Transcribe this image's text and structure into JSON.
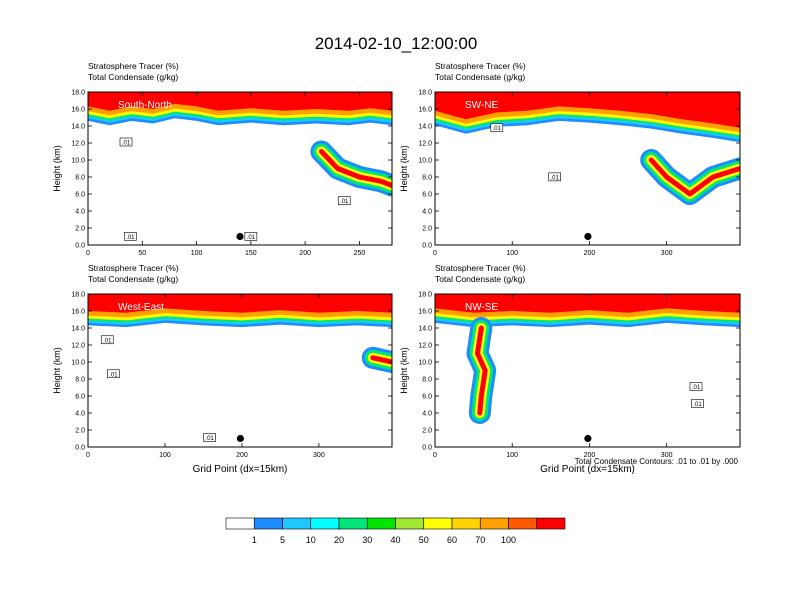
{
  "title": "2014-02-10_12:00:00",
  "colorbar": {
    "colors": [
      "#ffffff",
      "#1e8cff",
      "#1ec8ff",
      "#00ffff",
      "#00e678",
      "#00e600",
      "#a0e632",
      "#ffff00",
      "#ffd200",
      "#ffa000",
      "#ff5a00",
      "#ff0000"
    ],
    "labels": [
      "1",
      "5",
      "10",
      "20",
      "30",
      "40",
      "50",
      "60",
      "70",
      "100"
    ]
  },
  "footnote": "Total Condensate Contours: .01 to .01 by .000",
  "chart_data": [
    {
      "type": "heatmap",
      "label": "South-North",
      "title_line1": "Stratosphere Tracer   (%)",
      "title_line2": "Total Condensate   (g/kg)",
      "ylabel": "Height (km)",
      "xlabel": "",
      "xlim": [
        0,
        280
      ],
      "ylim": [
        0,
        18
      ],
      "xticks": [
        "0",
        "50",
        "100",
        "150",
        "200",
        "250"
      ],
      "xtick_values": [
        0,
        50,
        100,
        150,
        200,
        250
      ],
      "yticks": [
        "0.0",
        "2.0",
        "4.0",
        "6.0",
        "8.0",
        "10.0",
        "12.0",
        "14.0",
        "16.0",
        "18.0"
      ],
      "marker": {
        "x": 140,
        "y": 1.0
      },
      "contour_labels": [
        {
          "text": ".01",
          "x": 35,
          "y": 12
        },
        {
          "text": ".01",
          "x": 39,
          "y": 0.9
        },
        {
          "text": ".01",
          "x": 150,
          "y": 0.9
        },
        {
          "text": ".01",
          "x": 236,
          "y": 5.1
        }
      ],
      "tropopause": [
        [
          0,
          15.5
        ],
        [
          20,
          15.0
        ],
        [
          40,
          15.5
        ],
        [
          60,
          15.2
        ],
        [
          80,
          15.8
        ],
        [
          100,
          15.5
        ],
        [
          120,
          15.0
        ],
        [
          150,
          15.3
        ],
        [
          180,
          15.0
        ],
        [
          210,
          15.2
        ],
        [
          240,
          15.0
        ],
        [
          260,
          15.3
        ],
        [
          280,
          15.0
        ]
      ],
      "intrusion": [
        [
          215,
          11
        ],
        [
          230,
          9
        ],
        [
          250,
          8
        ],
        [
          270,
          7.5
        ],
        [
          280,
          7
        ]
      ]
    },
    {
      "type": "heatmap",
      "label": "SW-NE",
      "title_line1": "Stratosphere Tracer   (%)",
      "title_line2": "Total Condensate   (g/kg)",
      "ylabel": "Height (km)",
      "xlabel": "",
      "xlim": [
        0,
        395
      ],
      "ylim": [
        0,
        18
      ],
      "xticks": [
        "0",
        "100",
        "200",
        "300"
      ],
      "xtick_values": [
        0,
        100,
        200,
        300
      ],
      "yticks": [
        "0.0",
        "2.0",
        "4.0",
        "6.0",
        "8.0",
        "10.0",
        "12.0",
        "14.0",
        "16.0",
        "18.0"
      ],
      "marker": {
        "x": 198,
        "y": 1.0
      },
      "contour_labels": [
        {
          "text": ".01",
          "x": 80,
          "y": 13.7
        },
        {
          "text": ".01",
          "x": 155,
          "y": 7.9
        }
      ],
      "tropopause": [
        [
          0,
          15.0
        ],
        [
          40,
          14.0
        ],
        [
          80,
          14.8
        ],
        [
          120,
          15.0
        ],
        [
          160,
          15.5
        ],
        [
          200,
          15.3
        ],
        [
          240,
          15.0
        ],
        [
          280,
          14.6
        ],
        [
          320,
          14.0
        ],
        [
          360,
          13.5
        ],
        [
          395,
          13.0
        ]
      ],
      "intrusion": [
        [
          280,
          10
        ],
        [
          300,
          8
        ],
        [
          330,
          6
        ],
        [
          360,
          8
        ],
        [
          395,
          9
        ]
      ]
    },
    {
      "type": "heatmap",
      "label": "West-East",
      "title_line1": "Stratosphere Tracer   (%)",
      "title_line2": "Total Condensate   (g/kg)",
      "ylabel": "Height (km)",
      "xlabel": "Grid Point (dx=15km)",
      "xlim": [
        0,
        395
      ],
      "ylim": [
        0,
        18
      ],
      "xticks": [
        "0",
        "100",
        "200",
        "300"
      ],
      "xtick_values": [
        0,
        100,
        200,
        300
      ],
      "yticks": [
        "0.0",
        "2.0",
        "4.0",
        "6.0",
        "8.0",
        "10.0",
        "12.0",
        "14.0",
        "16.0",
        "18.0"
      ],
      "marker": {
        "x": 198,
        "y": 1.0
      },
      "contour_labels": [
        {
          "text": ".01",
          "x": 25,
          "y": 12.5
        },
        {
          "text": ".01",
          "x": 33,
          "y": 8.5
        },
        {
          "text": ".01",
          "x": 158,
          "y": 1.0
        }
      ],
      "tropopause": [
        [
          0,
          15.2
        ],
        [
          50,
          15.0
        ],
        [
          100,
          15.5
        ],
        [
          150,
          15.2
        ],
        [
          200,
          15.0
        ],
        [
          250,
          15.3
        ],
        [
          300,
          15.0
        ],
        [
          350,
          15.2
        ],
        [
          395,
          15.0
        ]
      ],
      "intrusion": [
        [
          370,
          10.5
        ],
        [
          395,
          10
        ]
      ]
    },
    {
      "type": "heatmap",
      "label": "NW-SE",
      "title_line1": "Stratosphere Tracer   (%)",
      "title_line2": "Total Condensate   (g/kg)",
      "ylabel": "Height (km)",
      "xlabel": "Grid Point (dx=15km)",
      "xlim": [
        0,
        395
      ],
      "ylim": [
        0,
        18
      ],
      "xticks": [
        "0",
        "100",
        "200",
        "300"
      ],
      "xtick_values": [
        0,
        100,
        200,
        300
      ],
      "yticks": [
        "0.0",
        "2.0",
        "4.0",
        "6.0",
        "8.0",
        "10.0",
        "12.0",
        "14.0",
        "16.0",
        "18.0"
      ],
      "marker": {
        "x": 198,
        "y": 1.0
      },
      "contour_labels": [
        {
          "text": ".01",
          "x": 338,
          "y": 7.0
        },
        {
          "text": ".01",
          "x": 340,
          "y": 5.0
        }
      ],
      "tropopause": [
        [
          0,
          15.5
        ],
        [
          50,
          15.0
        ],
        [
          100,
          15.2
        ],
        [
          150,
          15.0
        ],
        [
          200,
          15.3
        ],
        [
          250,
          15.0
        ],
        [
          300,
          15.5
        ],
        [
          350,
          15.2
        ],
        [
          395,
          15.0
        ]
      ],
      "intrusion": [
        [
          60,
          14
        ],
        [
          55,
          11
        ],
        [
          65,
          9
        ],
        [
          60,
          6
        ],
        [
          58,
          4
        ]
      ]
    }
  ]
}
